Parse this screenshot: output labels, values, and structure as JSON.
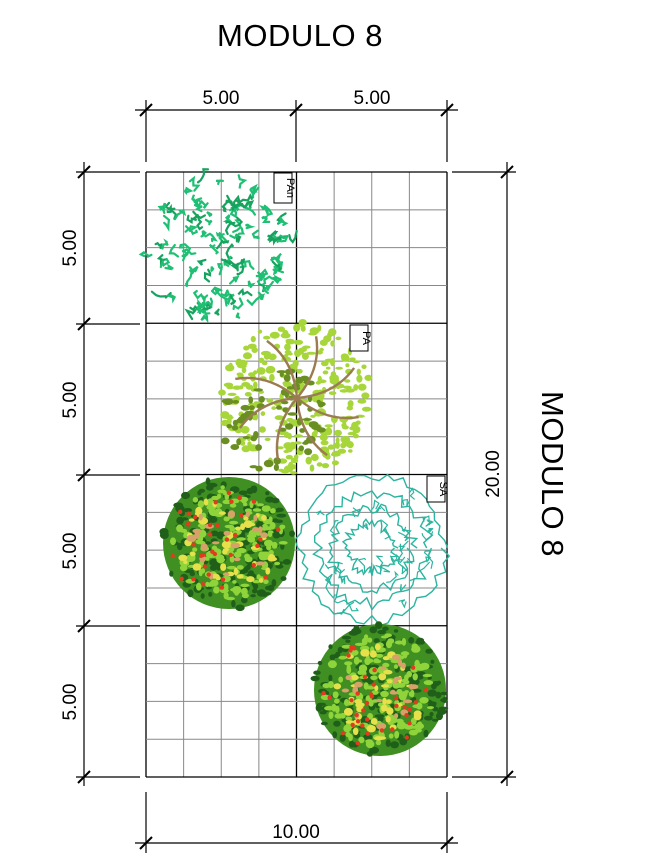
{
  "title": "MODULO 8",
  "side_title": "MODULO 8",
  "dimensions": {
    "top_left": "5.00",
    "top_right": "5.00",
    "left": [
      "5.00",
      "5.00",
      "5.00",
      "5.00"
    ],
    "right_total": "20.00",
    "bottom_total": "10.00"
  },
  "plants": [
    {
      "tag": "PAn",
      "kind": "canopy-dense",
      "color": "#1fbf74"
    },
    {
      "tag": "PA",
      "kind": "branch-leaves",
      "color": "#9acd32"
    },
    {
      "tag": "SA",
      "kind": "outline",
      "color": "#2bb5a0"
    },
    {
      "tag": "",
      "kind": "fruit-shrub",
      "color": "#2e7d1a"
    },
    {
      "tag": "",
      "kind": "fruit-shrub",
      "color": "#2e7d1a"
    }
  ],
  "colors": {
    "grid": "#888888",
    "line": "#000000",
    "pan_green": "#1fbf74",
    "pa_light": "#a6d63a",
    "pa_dark": "#6b8e23",
    "pa_branch": "#9b7b52",
    "sa_teal": "#2bb5a0",
    "shrub_dark": "#1f5f1a",
    "shrub_light": "#8fd43a",
    "fruit_red": "#e23b1f"
  }
}
